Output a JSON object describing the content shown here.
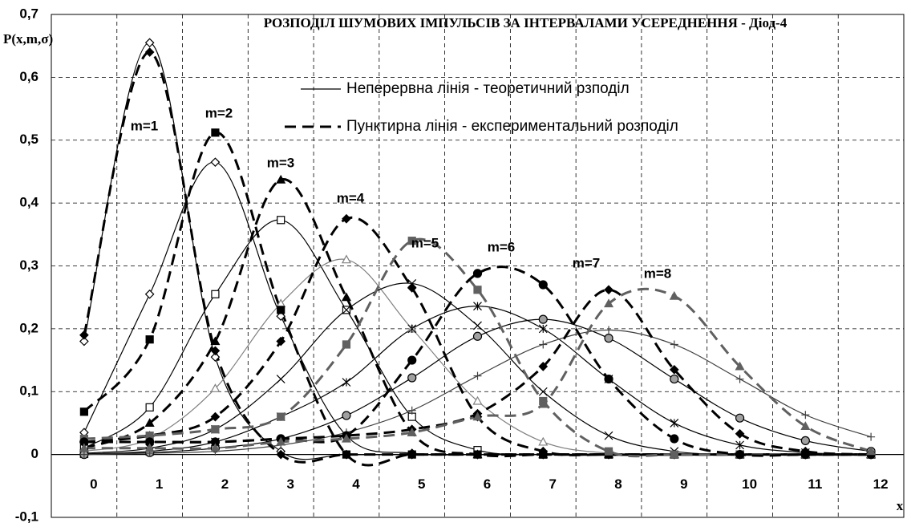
{
  "chart_data": {
    "type": "line",
    "title": "РОЗПОДІЛ ШУМОВИХ ІМПУЛЬСІВ ЗА ІНТЕРВАЛАМИ УСЕРЕДНЕННЯ  - Діод-4",
    "y_label": "P(x,m,σ)",
    "x_label": "x",
    "categories": [
      "0",
      "1",
      "2",
      "3",
      "4",
      "5",
      "6",
      "7",
      "8",
      "9",
      "10",
      "11",
      "12"
    ],
    "ylim": [
      -0.1,
      0.7
    ],
    "yticks": [
      {
        "value": -0.1,
        "label": "-0,1"
      },
      0,
      {
        "value": 0.1,
        "label": "0,1"
      },
      {
        "value": 0.2,
        "label": "0,2"
      },
      {
        "value": 0.3,
        "label": "0,3"
      },
      {
        "value": 0.4,
        "label": "0,4"
      },
      {
        "value": 0.5,
        "label": "0,5"
      },
      {
        "value": 0.6,
        "label": "0,6"
      },
      {
        "value": 0.7,
        "label": "0,7"
      }
    ],
    "grid": true,
    "legend": [
      {
        "label": "Неперервна лінія  - теоретичний рзподіл",
        "style": "solid"
      },
      {
        "label": "Пунктирна лінія - експериментальний розподіл",
        "style": "dashed"
      }
    ],
    "annotations": [
      "m=1",
      "m=2",
      "m=3",
      "m=4",
      "m=5",
      "m=6",
      "m=7",
      "m=8"
    ],
    "series": [
      {
        "style": "solid",
        "color": "#000000",
        "marker": "diamond",
        "filled": false,
        "values": [
          0.18,
          0.655,
          0.155,
          0.005,
          0,
          0,
          0,
          0,
          0,
          0,
          0,
          0,
          0
        ]
      },
      {
        "style": "solid",
        "color": "#000000",
        "marker": "diamond",
        "filled": false,
        "values": [
          0.035,
          0.255,
          0.465,
          0.22,
          0.03,
          0.002,
          0,
          0,
          0,
          0,
          0,
          0,
          0
        ]
      },
      {
        "style": "solid",
        "color": "#000000",
        "marker": "square",
        "filled": false,
        "values": [
          0.01,
          0.075,
          0.255,
          0.373,
          0.23,
          0.06,
          0.007,
          0,
          0,
          0,
          0,
          0,
          0
        ]
      },
      {
        "style": "solid",
        "color": "#808080",
        "marker": "triangle",
        "filled": false,
        "values": [
          0.005,
          0.025,
          0.105,
          0.24,
          0.31,
          0.2,
          0.085,
          0.02,
          0.002,
          0,
          0,
          0,
          0
        ]
      },
      {
        "style": "solid",
        "color": "#000000",
        "marker": "cross",
        "filled": false,
        "values": [
          0.002,
          0.01,
          0.04,
          0.12,
          0.23,
          0.272,
          0.205,
          0.1,
          0.03,
          0.005,
          0,
          0,
          0
        ]
      },
      {
        "style": "solid",
        "color": "#000000",
        "marker": "star",
        "filled": false,
        "values": [
          0.001,
          0.005,
          0.02,
          0.06,
          0.115,
          0.2,
          0.236,
          0.2,
          0.12,
          0.05,
          0.015,
          0.003,
          0
        ]
      },
      {
        "style": "solid",
        "color": "#000000",
        "marker": "circle",
        "filled": true,
        "fillColor": "#a0a0a0",
        "values": [
          0,
          0.003,
          0.01,
          0.025,
          0.062,
          0.122,
          0.188,
          0.215,
          0.185,
          0.12,
          0.058,
          0.022,
          0.005
        ]
      },
      {
        "style": "solid",
        "color": "#404040",
        "marker": "plus",
        "filled": false,
        "values": [
          0,
          0.002,
          0.005,
          0.015,
          0.035,
          0.07,
          0.125,
          0.175,
          0.198,
          0.175,
          0.12,
          0.063,
          0.028
        ]
      },
      {
        "style": "dashed",
        "color": "#000000",
        "marker": "diamond",
        "filled": true,
        "values": [
          0.19,
          0.64,
          0.165,
          0,
          0,
          0,
          0,
          0,
          0,
          0,
          0,
          0,
          0
        ]
      },
      {
        "style": "dashed",
        "color": "#000000",
        "marker": "square",
        "filled": true,
        "values": [
          0.068,
          0.183,
          0.512,
          0.23,
          0,
          0,
          0,
          0,
          0,
          0,
          0,
          0,
          0
        ]
      },
      {
        "style": "dashed",
        "color": "#000000",
        "marker": "triangle",
        "filled": true,
        "values": [
          0.01,
          0.05,
          0.18,
          0.437,
          0.25,
          0.035,
          0,
          0,
          0,
          0,
          0,
          0,
          0
        ]
      },
      {
        "style": "dashed",
        "color": "#000000",
        "marker": "diamond",
        "filled": true,
        "values": [
          0.02,
          0.03,
          0.06,
          0.18,
          0.375,
          0.265,
          0.06,
          0.005,
          0,
          0,
          0,
          0,
          0
        ]
      },
      {
        "style": "dashed",
        "color": "#606060",
        "marker": "square",
        "filled": true,
        "values": [
          0.025,
          0.03,
          0.04,
          0.06,
          0.175,
          0.34,
          0.262,
          0.085,
          0.005,
          0,
          0,
          0,
          0
        ]
      },
      {
        "style": "dashed",
        "color": "#000000",
        "marker": "circle",
        "filled": true,
        "values": [
          0.02,
          0.02,
          0.02,
          0.025,
          0.03,
          0.15,
          0.288,
          0.27,
          0.12,
          0.025,
          0,
          0,
          0
        ]
      },
      {
        "style": "dashed",
        "color": "#000000",
        "marker": "diamond",
        "filled": true,
        "values": [
          0.02,
          0.02,
          0.02,
          0.025,
          0.03,
          0.04,
          0.065,
          0.14,
          0.262,
          0.135,
          0.033,
          0.005,
          0
        ]
      },
      {
        "style": "dashed",
        "color": "#606060",
        "marker": "triangle",
        "filled": true,
        "values": [
          0.01,
          0.01,
          0.01,
          0.02,
          0.025,
          0.035,
          0.06,
          0.08,
          0.24,
          0.252,
          0.14,
          0.045,
          0.005
        ]
      }
    ]
  }
}
